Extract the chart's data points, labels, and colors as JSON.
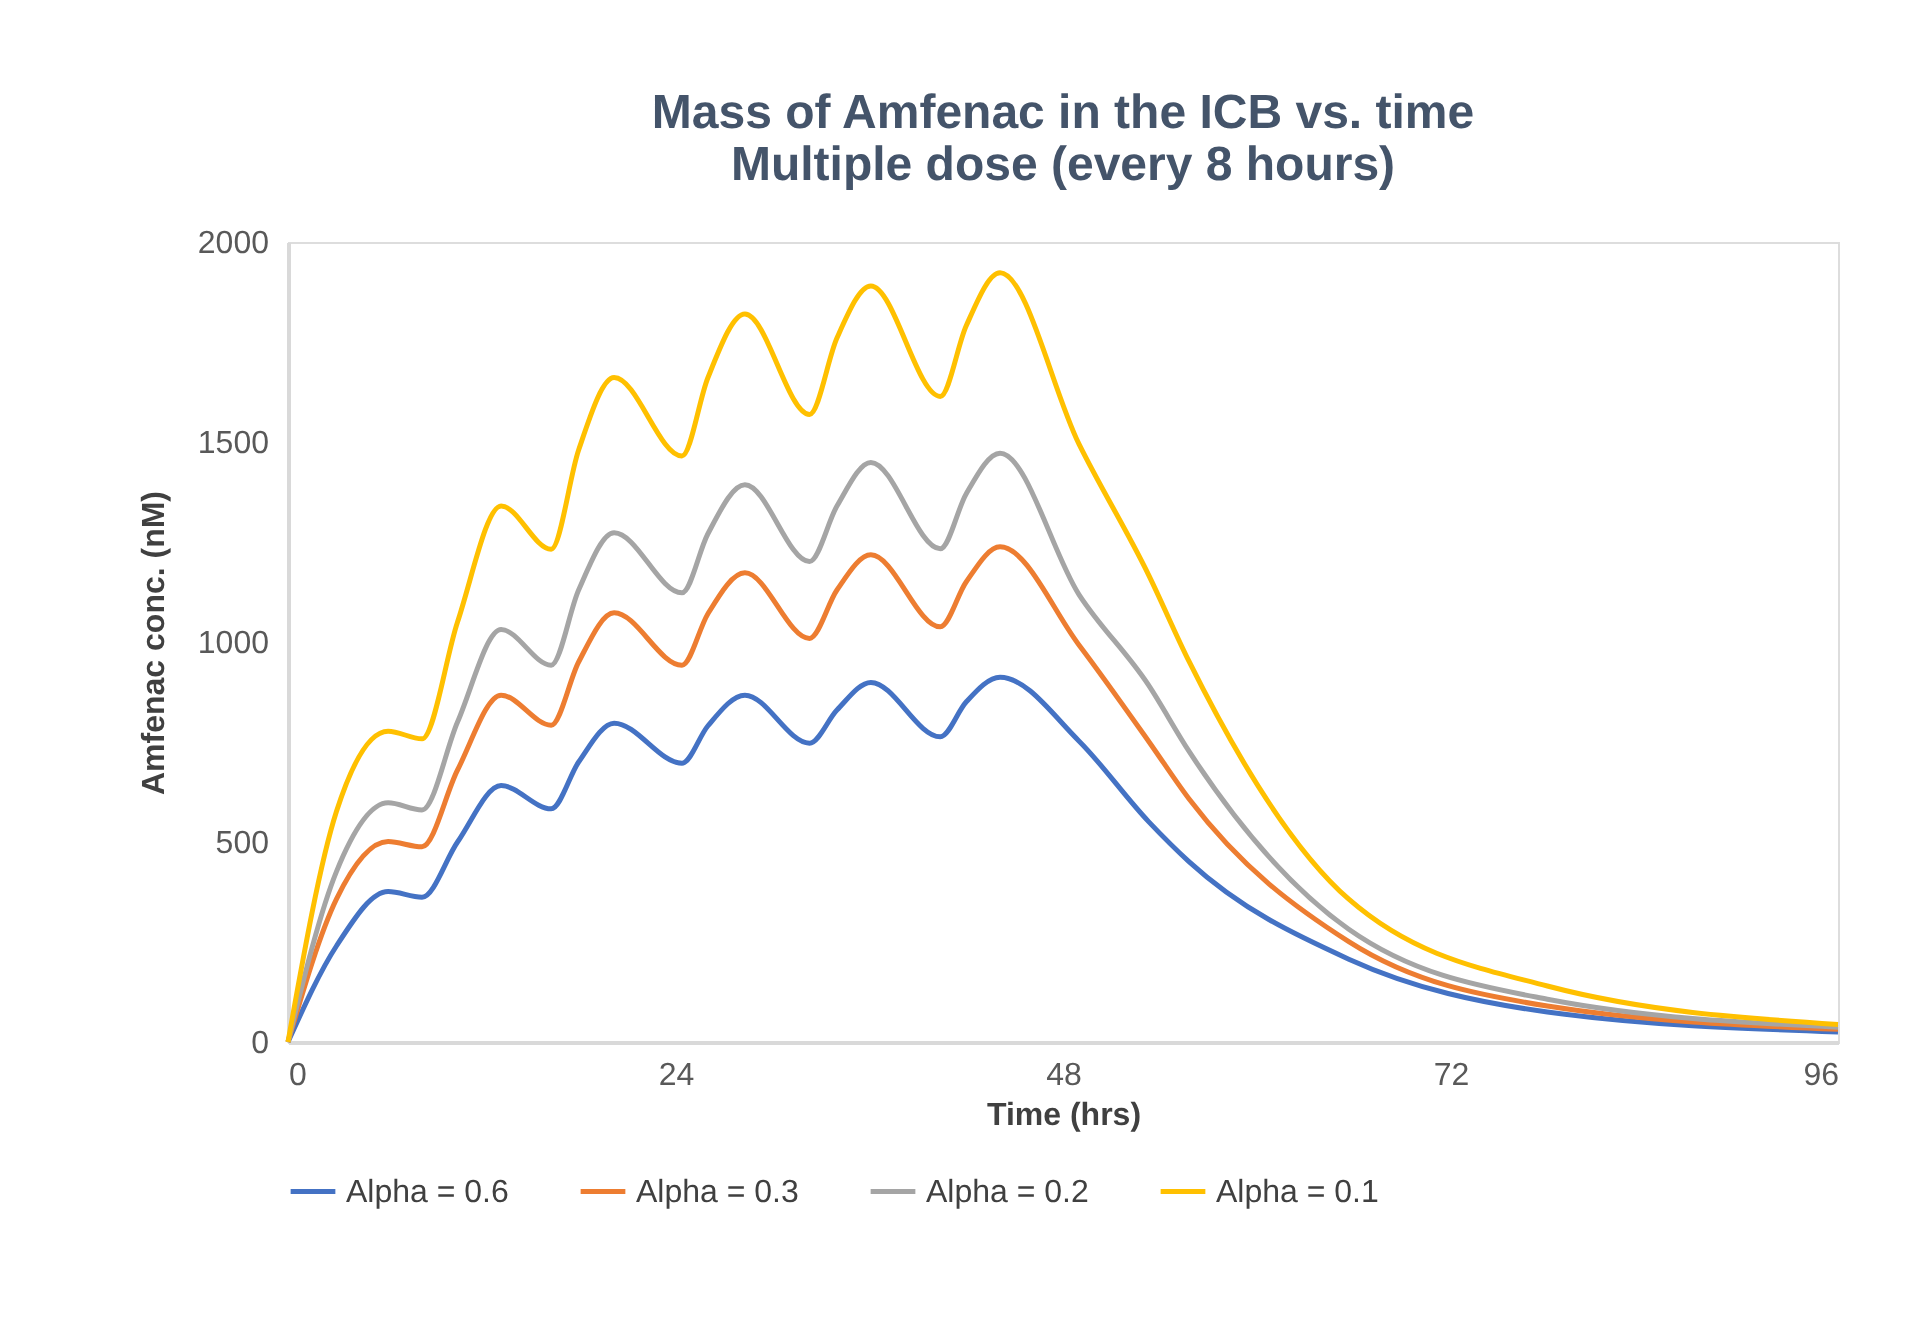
{
  "chart_data": {
    "type": "line",
    "title": "Mass of Amfenac in the ICB vs. time\nMultiple dose (every 8 hours)",
    "xlabel": "Time (hrs)",
    "ylabel": "Amfenac conc.  (nM)",
    "x": [
      0,
      3,
      6.2,
      8.3,
      10.5,
      13.2,
      16.3,
      18,
      20.2,
      24.4,
      26,
      28.3,
      32.3,
      34,
      36.1,
      40.4,
      42,
      44.1,
      49,
      53.3,
      55.8,
      65.7,
      78,
      96
    ],
    "xlim": [
      0,
      96
    ],
    "xticks": [
      0,
      24,
      48,
      72,
      96
    ],
    "ylim": [
      0,
      2000
    ],
    "yticks": [
      0,
      500,
      1000,
      1500,
      2000
    ],
    "grid": false,
    "legend": "bottom",
    "marker": "none",
    "line_style": "solid",
    "series": [
      {
        "name": "Alpha = 0.6",
        "color": "#4472c4",
        "values": [
          0,
          240,
          376,
          362,
          500,
          641,
          583,
          700,
          797,
          697,
          790,
          867,
          747,
          830,
          899,
          763,
          850,
          912,
          752,
          551,
          451,
          207,
          75,
          25
        ]
      },
      {
        "name": "Alpha = 0.3",
        "color": "#ed7d31",
        "values": [
          0,
          357,
          501,
          488,
          680,
          867,
          792,
          950,
          1073,
          942,
          1070,
          1173,
          1009,
          1130,
          1218,
          1038,
          1150,
          1238,
          992,
          752,
          608,
          251,
          90,
          32
        ]
      },
      {
        "name": "Alpha = 0.2",
        "color": "#a5a5a5",
        "values": [
          0,
          426,
          598,
          580,
          800,
          1031,
          942,
          1130,
          1273,
          1123,
          1270,
          1393,
          1201,
          1340,
          1449,
          1233,
          1370,
          1472,
          1118,
          892,
          727,
          282,
          107,
          37
        ]
      },
      {
        "name": "Alpha = 0.1",
        "color": "#ffc000",
        "values": [
          0,
          576,
          777,
          758,
          1050,
          1340,
          1232,
          1480,
          1661,
          1465,
          1660,
          1820,
          1569,
          1760,
          1890,
          1614,
          1790,
          1923,
          1494,
          1168,
          952,
          357,
          140,
          44
        ]
      }
    ]
  }
}
